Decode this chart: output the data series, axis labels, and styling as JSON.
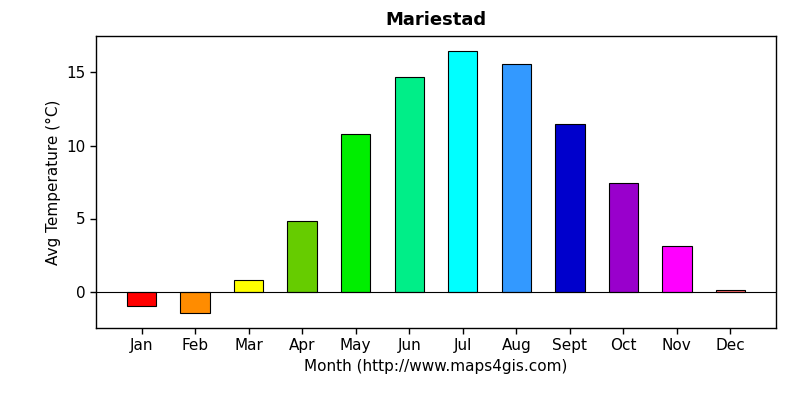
{
  "months": [
    "Jan",
    "Feb",
    "Mar",
    "Apr",
    "May",
    "Jun",
    "Jul",
    "Aug",
    "Sept",
    "Oct",
    "Nov",
    "Dec"
  ],
  "values": [
    -1.0,
    -1.5,
    0.8,
    4.8,
    10.8,
    14.7,
    16.5,
    15.6,
    11.5,
    7.4,
    3.1,
    0.1
  ],
  "colors": [
    "#ff0000",
    "#ff8c00",
    "#ffff00",
    "#66cc00",
    "#00ee00",
    "#00ee88",
    "#00ffff",
    "#3399ff",
    "#0000cc",
    "#9900cc",
    "#ff00ff",
    "#ff6666"
  ],
  "title": "Mariestad",
  "xlabel": "Month (http://www.maps4gis.com)",
  "ylabel": "Avg Temperature (°C)",
  "ylim": [
    -2.5,
    17.5
  ],
  "yticks": [
    0,
    5,
    10,
    15
  ],
  "background_color": "#ffffff",
  "title_fontsize": 13,
  "label_fontsize": 11
}
